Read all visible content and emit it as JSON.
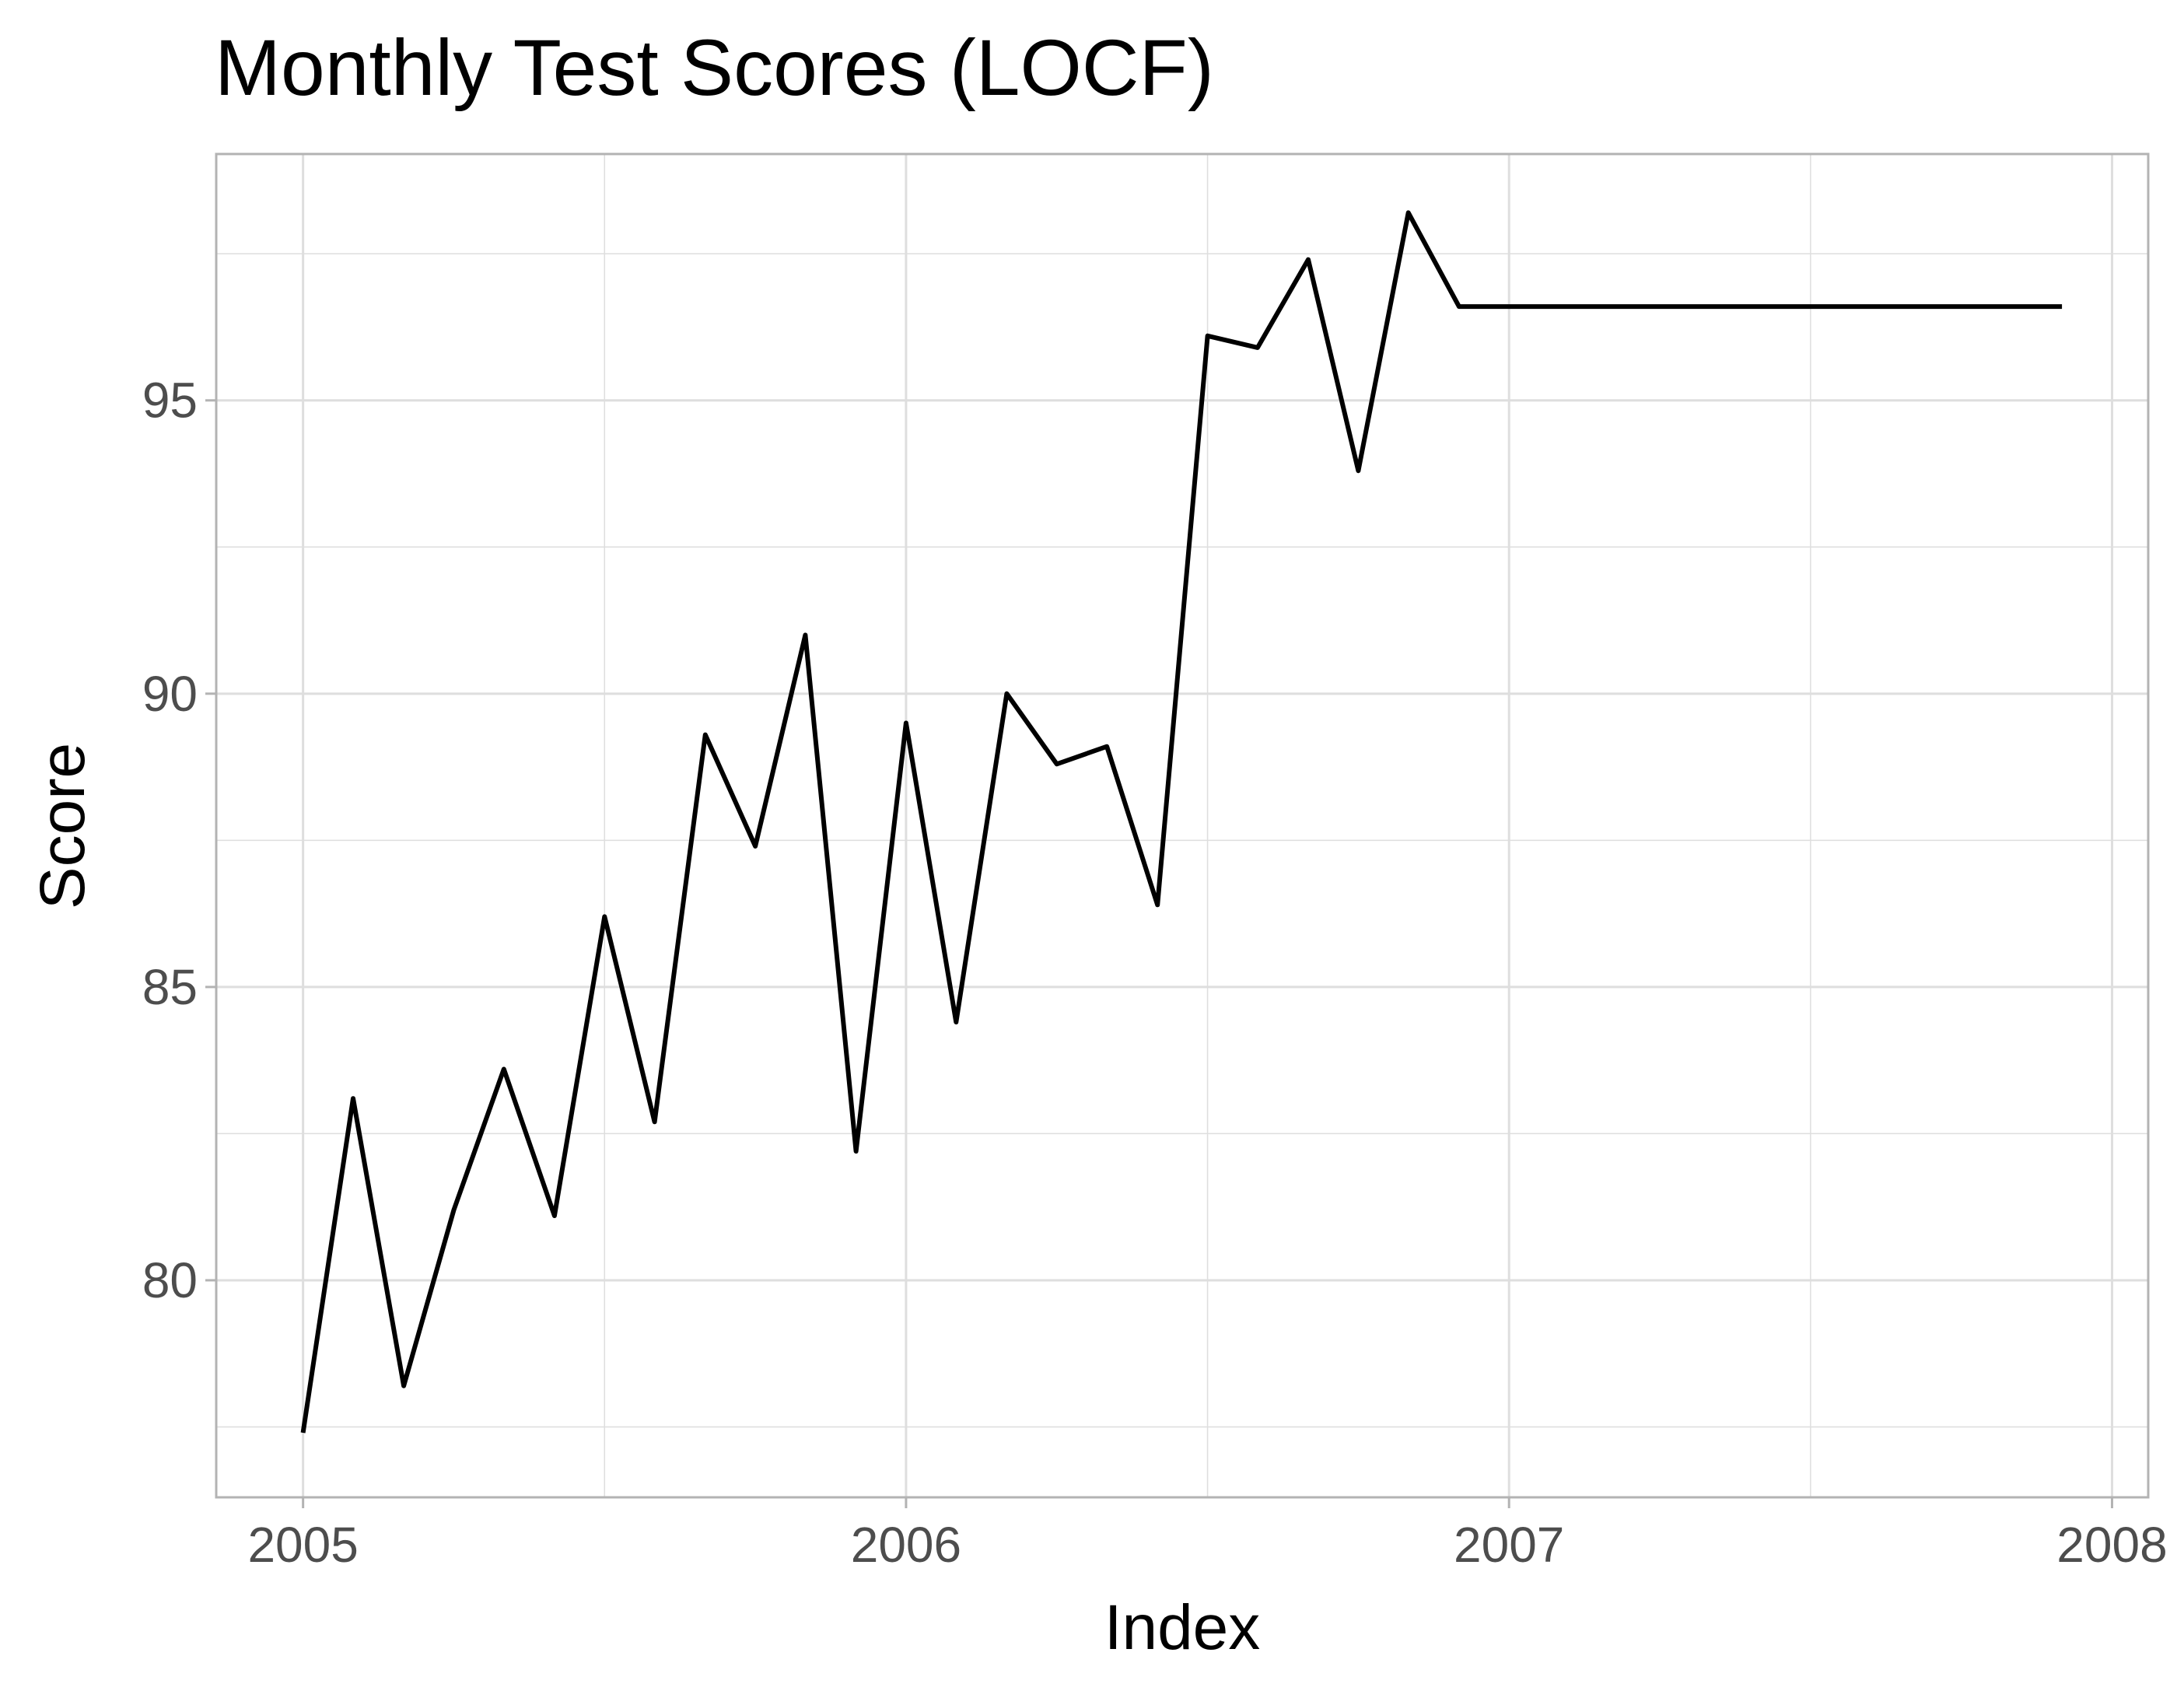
{
  "chart_data": {
    "type": "line",
    "title": "Monthly Test Scores (LOCF)",
    "xlabel": "Index",
    "ylabel": "Score",
    "xlim": [
      2004.856,
      2008.06
    ],
    "ylim": [
      76.3,
      99.2
    ],
    "x_ticks": [
      2005,
      2006,
      2007,
      2008
    ],
    "x_tick_labels": [
      "2005",
      "2006",
      "2007",
      "2008"
    ],
    "y_ticks": [
      80,
      85,
      90,
      95
    ],
    "y_tick_labels": [
      "80",
      "85",
      "90",
      "95"
    ],
    "grid": true,
    "legend": "none",
    "colors": {
      "line": "#000000",
      "grid": "#dedede",
      "panel_border": "#b3b3b3",
      "tick_text": "#4d4d4d"
    },
    "series": [
      {
        "x": [
          2005.0,
          2005.083,
          2005.167,
          2005.25,
          2005.333,
          2005.417,
          2005.5,
          2005.583,
          2005.667,
          2005.75,
          2005.833,
          2005.917,
          2006.0,
          2006.083,
          2006.167,
          2006.25,
          2006.333,
          2006.417,
          2006.5,
          2006.583,
          2006.667,
          2006.75,
          2006.833,
          2006.917,
          2007.0,
          2007.083,
          2007.167,
          2007.25,
          2007.333,
          2007.417,
          2007.5,
          2007.583,
          2007.667,
          2007.75,
          2007.833,
          2007.917
        ],
        "values": [
          77.4,
          83.1,
          78.2,
          81.2,
          83.6,
          81.1,
          86.2,
          82.7,
          89.3,
          87.4,
          91.0,
          82.2,
          89.5,
          84.4,
          90.0,
          88.8,
          89.1,
          86.4,
          96.1,
          95.9,
          97.4,
          93.8,
          98.2,
          96.6,
          96.6,
          96.6,
          96.6,
          96.6,
          96.6,
          96.6,
          96.6,
          96.6,
          96.6,
          96.6,
          96.6,
          96.6
        ]
      }
    ]
  }
}
